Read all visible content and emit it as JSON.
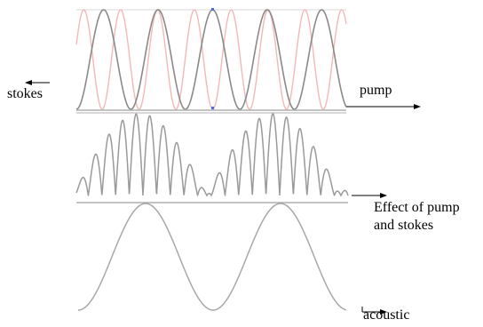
{
  "labels": {
    "stokes": "stokes",
    "pump": "pump",
    "effect_line1": "Effect of pump",
    "effect_line2": "and stokes",
    "acoustic": "acoustic"
  },
  "colors": {
    "pump_wave": "#f4b8b8",
    "stokes_wave": "#8a8a8a",
    "beat_wave": "#9a9a9a",
    "acoustic_wave": "#a8a8a8",
    "baseline": "#b0b0b0",
    "marker": "#4a6fd8",
    "arrow": "#000000"
  }
}
